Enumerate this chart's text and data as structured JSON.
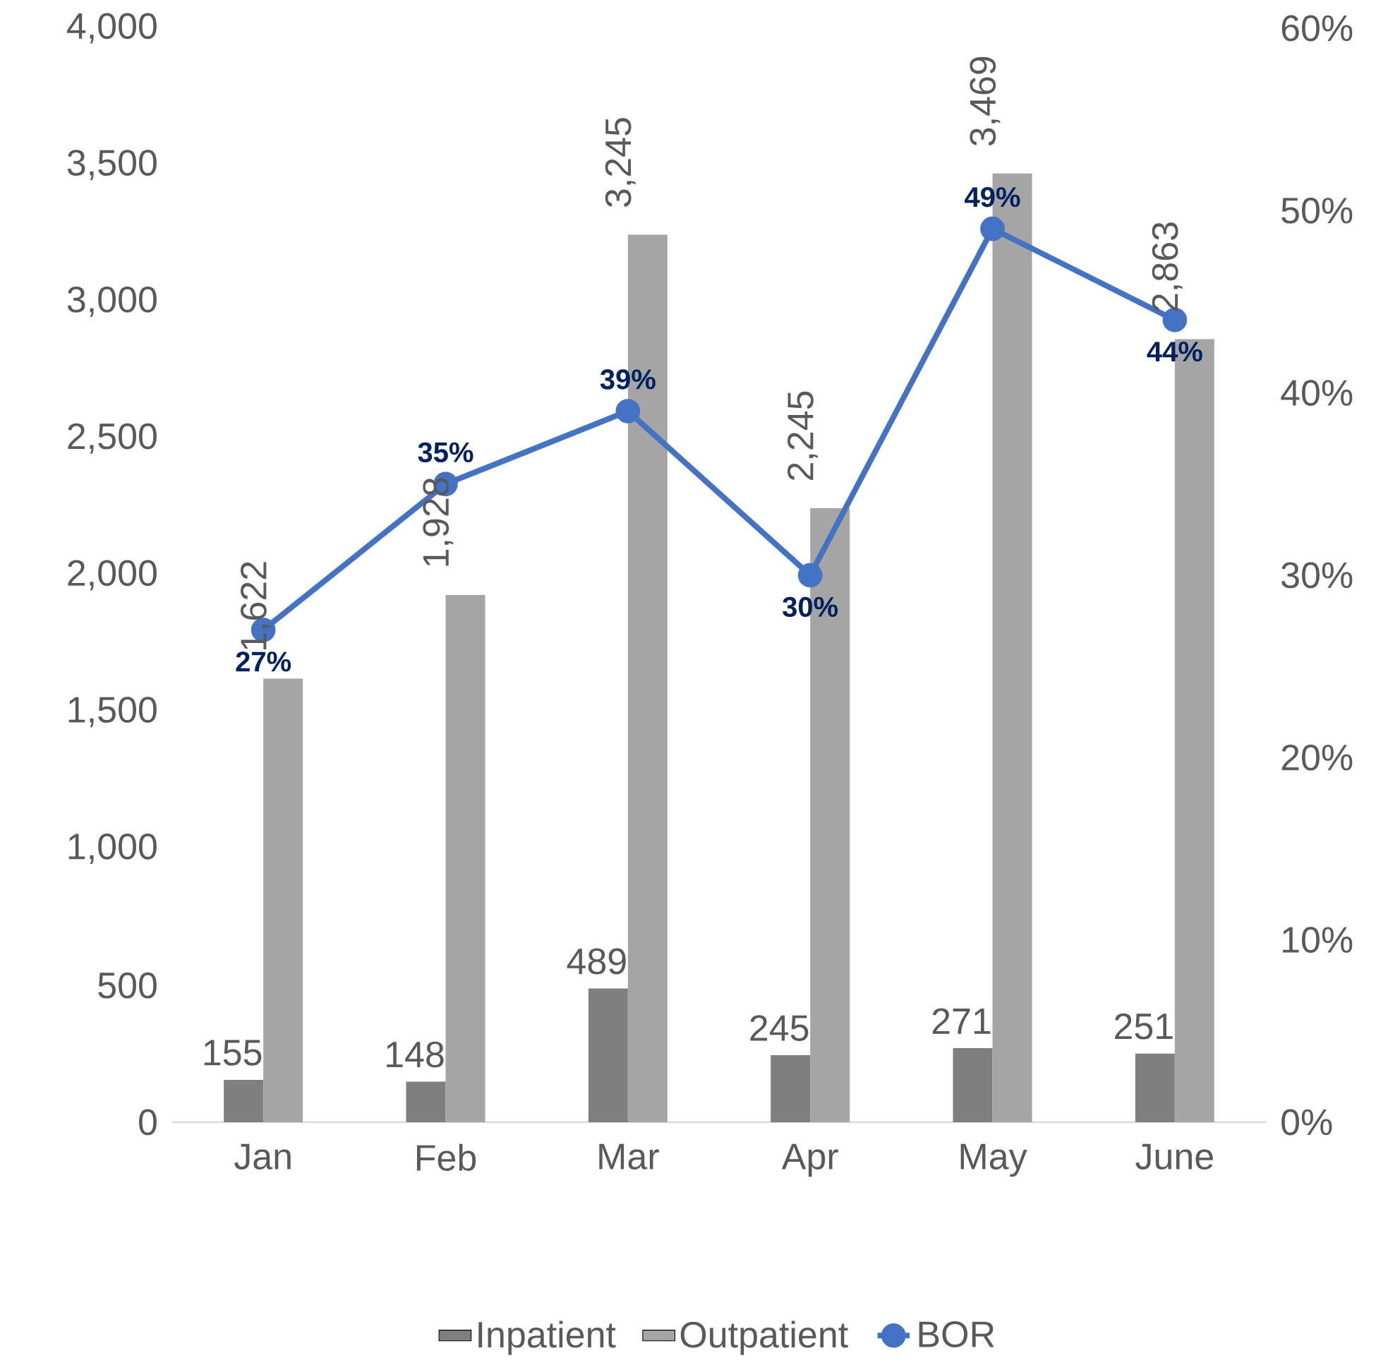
{
  "chart_data": {
    "type": "bar",
    "categories": [
      "Jan",
      "Feb",
      "Mar",
      "Apr",
      "May",
      "June"
    ],
    "series": [
      {
        "name": "Inpatient",
        "color": "#7f7f7f",
        "values": [
          155,
          148,
          489,
          245,
          271,
          251
        ],
        "value_labels": [
          "155",
          "148",
          "489",
          "245",
          "271",
          "251"
        ]
      },
      {
        "name": "Outpatient",
        "color": "#a5a5a5",
        "values": [
          1622,
          1928,
          3245,
          2245,
          3469,
          2863
        ],
        "value_labels": [
          "1,622",
          "1,928",
          "3,245",
          "2,245",
          "3,469",
          "2,863"
        ]
      },
      {
        "name": "BOR",
        "type": "line",
        "axis": "y2",
        "color": "#4472c4",
        "marker": "circle",
        "values": [
          27,
          35,
          39,
          30,
          49,
          44
        ],
        "value_labels": [
          "27%",
          "35%",
          "39%",
          "30%",
          "49%",
          "44%"
        ]
      }
    ],
    "ylim": [
      0,
      4000
    ],
    "yticks": [
      0,
      500,
      {
        "value": 1000,
        "label": "1,000"
      },
      {
        "value": 1500,
        "label": "1,500"
      },
      {
        "value": 2000,
        "label": "2,000"
      },
      {
        "value": 2500,
        "label": "2,500"
      },
      {
        "value": 3000,
        "label": "3,000"
      },
      {
        "value": 3500,
        "label": "3,500"
      },
      {
        "value": 4000,
        "label": "4,000"
      }
    ],
    "y2lim": [
      0,
      60
    ],
    "y2ticks": [
      {
        "value": 0,
        "label": "0%"
      },
      {
        "value": 10,
        "label": "10%"
      },
      {
        "value": 20,
        "label": "20%"
      },
      {
        "value": 30,
        "label": "30%"
      },
      {
        "value": 40,
        "label": "40%"
      },
      {
        "value": 50,
        "label": "50%"
      },
      {
        "value": 60,
        "label": "60%"
      }
    ],
    "legend": "bottom",
    "grid": false
  }
}
